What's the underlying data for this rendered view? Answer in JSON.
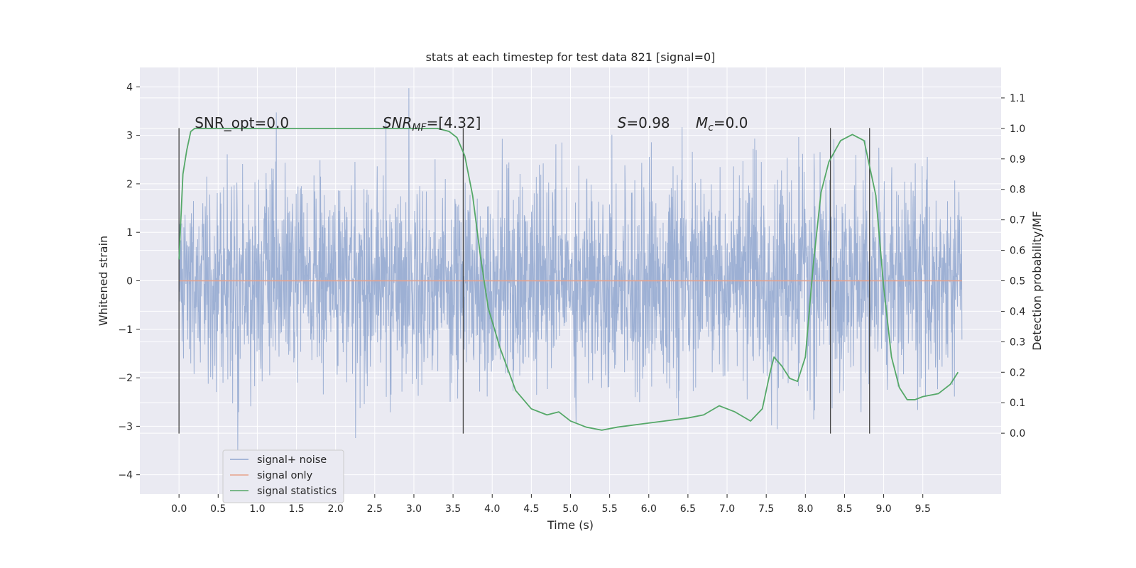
{
  "chart_data": {
    "type": "line",
    "title": "stats at each timestep for test data 821 [signal=0]",
    "xlabel": "Time (s)",
    "ylabel": "Whitened strain",
    "y2label": "Detection probability/MF",
    "xlim": [
      -0.5,
      10.5
    ],
    "ylim": [
      -4.4,
      4.4
    ],
    "y2lim": [
      -0.2,
      1.2
    ],
    "x_ticks": [
      "0.0",
      "0.5",
      "1.0",
      "1.5",
      "2.0",
      "2.5",
      "3.0",
      "3.5",
      "4.0",
      "4.5",
      "5.0",
      "5.5",
      "6.0",
      "6.5",
      "7.0",
      "7.5",
      "8.0",
      "8.5",
      "9.0",
      "9.5"
    ],
    "y_ticks": [
      "4",
      "3",
      "2",
      "1",
      "0",
      "−1",
      "−2",
      "−3",
      "−4"
    ],
    "y2_ticks": [
      "1.1",
      "1.0",
      "0.9",
      "0.8",
      "0.7",
      "0.6",
      "0.5",
      "0.4",
      "0.3",
      "0.2",
      "0.1",
      "0.0"
    ],
    "grid": true,
    "legend_placement": "lower-left",
    "annotations": [
      {
        "label": "SNR_opt=0.0",
        "x": 0.2
      },
      {
        "label_main": "SNR",
        "label_sub": "MF",
        "label_rest": "=[4.32]",
        "x": 2.6
      },
      {
        "label_main": "S",
        "label_rest": "=0.98",
        "x": 5.6
      },
      {
        "label_main": "M",
        "label_sub": "c",
        "label_rest": "=0.0",
        "x": 6.6
      }
    ],
    "vertical_markers": [
      0.0,
      3.63,
      8.32,
      8.82
    ],
    "marker_yrange": [
      -3.15,
      3.15
    ],
    "series": [
      {
        "name": "signal+ noise",
        "color": "#8fa6cf",
        "kind": "noise",
        "x_range": [
          0.0,
          10.0
        ],
        "approx_amplitude_range": [
          -4.0,
          4.0
        ]
      },
      {
        "name": "signal only",
        "color": "#e8a189",
        "values_x": [
          0.0,
          10.0
        ],
        "values_y": [
          0.0,
          0.0
        ]
      },
      {
        "name": "signal statistics",
        "color": "#55a868",
        "axis": "right",
        "x": [
          0.0,
          0.05,
          0.1,
          0.15,
          0.2,
          0.3,
          0.5,
          1.0,
          2.0,
          3.0,
          3.3,
          3.45,
          3.55,
          3.65,
          3.75,
          3.85,
          3.95,
          4.1,
          4.3,
          4.5,
          4.7,
          4.85,
          5.0,
          5.2,
          5.4,
          5.6,
          5.9,
          6.2,
          6.5,
          6.7,
          6.9,
          7.1,
          7.3,
          7.45,
          7.55,
          7.6,
          7.7,
          7.8,
          7.9,
          8.0,
          8.1,
          8.2,
          8.3,
          8.45,
          8.6,
          8.75,
          8.9,
          9.0,
          9.1,
          9.2,
          9.3,
          9.4,
          9.5,
          9.7,
          9.85,
          9.95
        ],
        "y": [
          0.57,
          0.85,
          0.93,
          0.99,
          1.0,
          1.0,
          1.0,
          1.0,
          1.0,
          1.0,
          1.0,
          0.99,
          0.97,
          0.91,
          0.78,
          0.58,
          0.41,
          0.28,
          0.14,
          0.08,
          0.06,
          0.07,
          0.04,
          0.02,
          0.01,
          0.02,
          0.03,
          0.04,
          0.05,
          0.06,
          0.09,
          0.07,
          0.04,
          0.08,
          0.2,
          0.25,
          0.22,
          0.18,
          0.17,
          0.25,
          0.55,
          0.79,
          0.89,
          0.96,
          0.98,
          0.96,
          0.78,
          0.48,
          0.25,
          0.15,
          0.11,
          0.11,
          0.12,
          0.13,
          0.16,
          0.2
        ]
      }
    ]
  }
}
